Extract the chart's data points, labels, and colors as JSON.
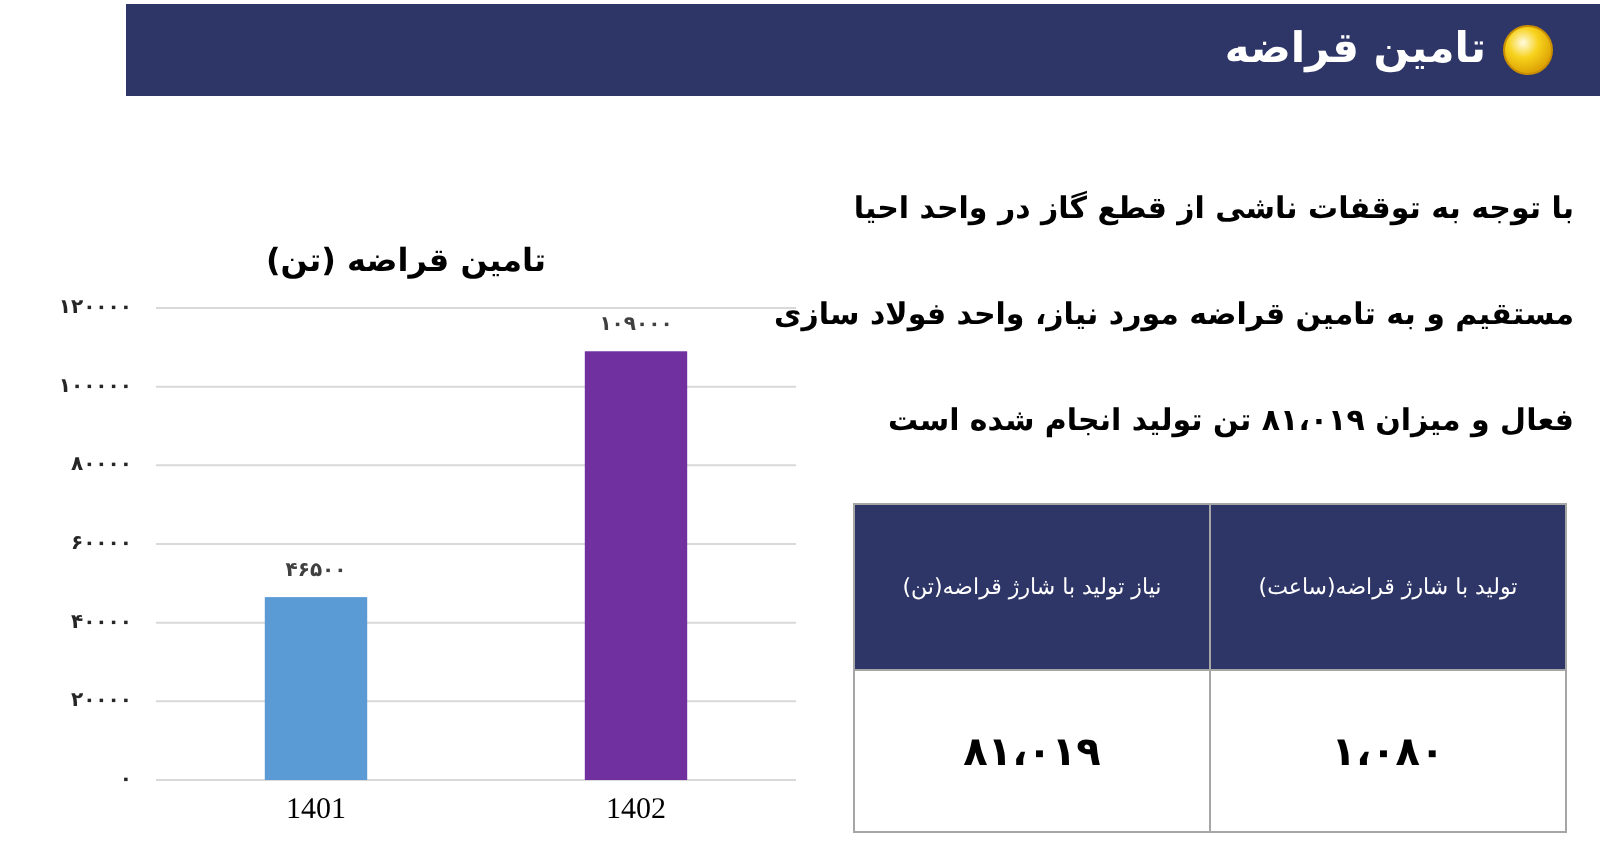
{
  "chart_data": [
    {
      "type": "other",
      "title": "تامین قراضه"
    },
    {
      "type": "bar",
      "title": "تامین قراضه (تن)",
      "categories": [
        "1401",
        "1402"
      ],
      "values": [
        46500,
        109000
      ],
      "colors": [
        "#5b9bd5",
        "#7030a0"
      ],
      "value_labels": [
        "۴۶۵۰۰",
        "۱۰۹۰۰۰"
      ],
      "ylim": [
        0,
        120000
      ],
      "yticks": [
        {
          "value": 0,
          "label": "۰"
        },
        {
          "value": 20000,
          "label": "۲۰۰۰۰"
        },
        {
          "value": 40000,
          "label": "۴۰۰۰۰"
        },
        {
          "value": 60000,
          "label": "۶۰۰۰۰"
        },
        {
          "value": 80000,
          "label": "۸۰۰۰۰"
        },
        {
          "value": 100000,
          "label": "۱۰۰۰۰۰"
        },
        {
          "value": 120000,
          "label": "۱۲۰۰۰۰"
        }
      ],
      "grid": "y"
    },
    {
      "type": "other",
      "annotations": [
        "با توجه به توقفات ناشی از قطع گاز در واحد احیا\nمستقیم و به تامین قراضه مورد نیاز، واحد فولاد سازی\nفعال و میزان ۸۱،۰۱۹ تن تولید انجام شده است",
        "نیاز تولید با شارژ قراضه(تن)",
        "تولید با شارژ قراضه(ساعت)",
        "۸۱،۰۱۹",
        "۱،۰۸۰"
      ]
    }
  ]
}
